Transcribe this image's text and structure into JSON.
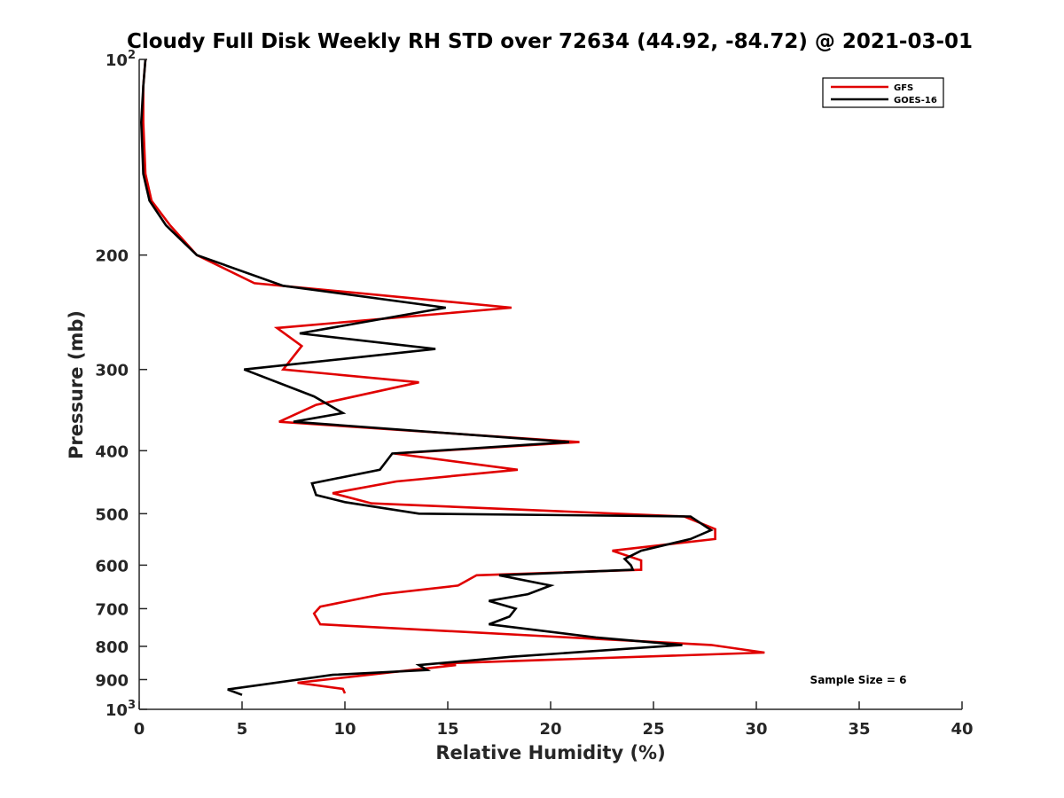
{
  "chart_data": {
    "type": "line",
    "title": "Cloudy Full Disk Weekly RH STD over 72634 (44.92, -84.72) @ 2021-03-01",
    "xlabel": "Relative Humidity (%)",
    "ylabel": "Pressure (mb)",
    "xlim": [
      0,
      40
    ],
    "ylim": [
      100,
      1000
    ],
    "yscale": "log",
    "y_reversed": true,
    "x_ticks": [
      "0",
      "5",
      "10",
      "15",
      "20",
      "25",
      "30",
      "35",
      "40"
    ],
    "y_ticks": [
      {
        "value": 100,
        "base": "10",
        "sup": "2"
      },
      {
        "value": 200,
        "base": "200",
        "sup": ""
      },
      {
        "value": 300,
        "base": "300",
        "sup": ""
      },
      {
        "value": 400,
        "base": "400",
        "sup": ""
      },
      {
        "value": 500,
        "base": "500",
        "sup": ""
      },
      {
        "value": 600,
        "base": "600",
        "sup": ""
      },
      {
        "value": 700,
        "base": "700",
        "sup": ""
      },
      {
        "value": 800,
        "base": "800",
        "sup": ""
      },
      {
        "value": 900,
        "base": "900",
        "sup": ""
      },
      {
        "value": 1000,
        "base": "10",
        "sup": "3"
      }
    ],
    "legend_position": "top-right",
    "grid": false,
    "annotation": "Sample Size = 6",
    "series": [
      {
        "name": "GFS",
        "color": "#e00000",
        "points": [
          [
            0.3,
            100
          ],
          [
            0.2,
            110
          ],
          [
            0.2,
            125
          ],
          [
            0.3,
            150
          ],
          [
            0.6,
            165
          ],
          [
            1.5,
            180
          ],
          [
            2.8,
            200
          ],
          [
            5.6,
            221
          ],
          [
            18.1,
            241
          ],
          [
            6.7,
            259
          ],
          [
            7.9,
            276
          ],
          [
            7.0,
            300
          ],
          [
            13.6,
            314
          ],
          [
            8.6,
            340
          ],
          [
            6.8,
            361
          ],
          [
            21.4,
            388
          ],
          [
            12.4,
            404
          ],
          [
            18.4,
            428
          ],
          [
            12.5,
            446
          ],
          [
            9.4,
            465
          ],
          [
            11.3,
            482
          ],
          [
            26.5,
            505
          ],
          [
            28.0,
            528
          ],
          [
            28.0,
            547
          ],
          [
            23.0,
            570
          ],
          [
            24.4,
            590
          ],
          [
            24.4,
            610
          ],
          [
            16.4,
            622
          ],
          [
            15.5,
            645
          ],
          [
            11.8,
            665
          ],
          [
            8.8,
            695
          ],
          [
            8.5,
            712
          ],
          [
            8.8,
            740
          ],
          [
            27.8,
            796
          ],
          [
            30.4,
            818
          ],
          [
            14.6,
            850
          ],
          [
            15.4,
            855
          ],
          [
            7.7,
            910
          ],
          [
            9.9,
            930
          ],
          [
            10.0,
            945
          ]
        ]
      },
      {
        "name": "GOES-16",
        "color": "#000000",
        "points": [
          [
            0.3,
            100
          ],
          [
            0.2,
            110
          ],
          [
            0.1,
            125
          ],
          [
            0.2,
            150
          ],
          [
            0.5,
            165
          ],
          [
            1.3,
            180
          ],
          [
            2.8,
            200
          ],
          [
            7.0,
            223
          ],
          [
            14.9,
            241
          ],
          [
            7.8,
            264
          ],
          [
            14.4,
            279
          ],
          [
            5.1,
            300
          ],
          [
            8.5,
            330
          ],
          [
            9.9,
            350
          ],
          [
            7.5,
            361
          ],
          [
            20.9,
            388
          ],
          [
            12.3,
            404
          ],
          [
            11.7,
            428
          ],
          [
            8.4,
            449
          ],
          [
            8.6,
            468
          ],
          [
            10.0,
            480
          ],
          [
            13.6,
            500
          ],
          [
            26.8,
            505
          ],
          [
            27.8,
            530
          ],
          [
            26.8,
            547
          ],
          [
            24.4,
            570
          ],
          [
            23.6,
            587
          ],
          [
            23.9,
            600
          ],
          [
            24.0,
            610
          ],
          [
            17.5,
            622
          ],
          [
            20.0,
            645
          ],
          [
            18.9,
            665
          ],
          [
            17.0,
            681
          ],
          [
            18.3,
            700
          ],
          [
            18.0,
            720
          ],
          [
            17.0,
            740
          ],
          [
            22.2,
            775
          ],
          [
            26.4,
            796
          ],
          [
            18.1,
            830
          ],
          [
            13.6,
            855
          ],
          [
            14.0,
            870
          ],
          [
            9.4,
            885
          ],
          [
            4.3,
            932
          ],
          [
            5.0,
            950
          ]
        ]
      }
    ]
  }
}
